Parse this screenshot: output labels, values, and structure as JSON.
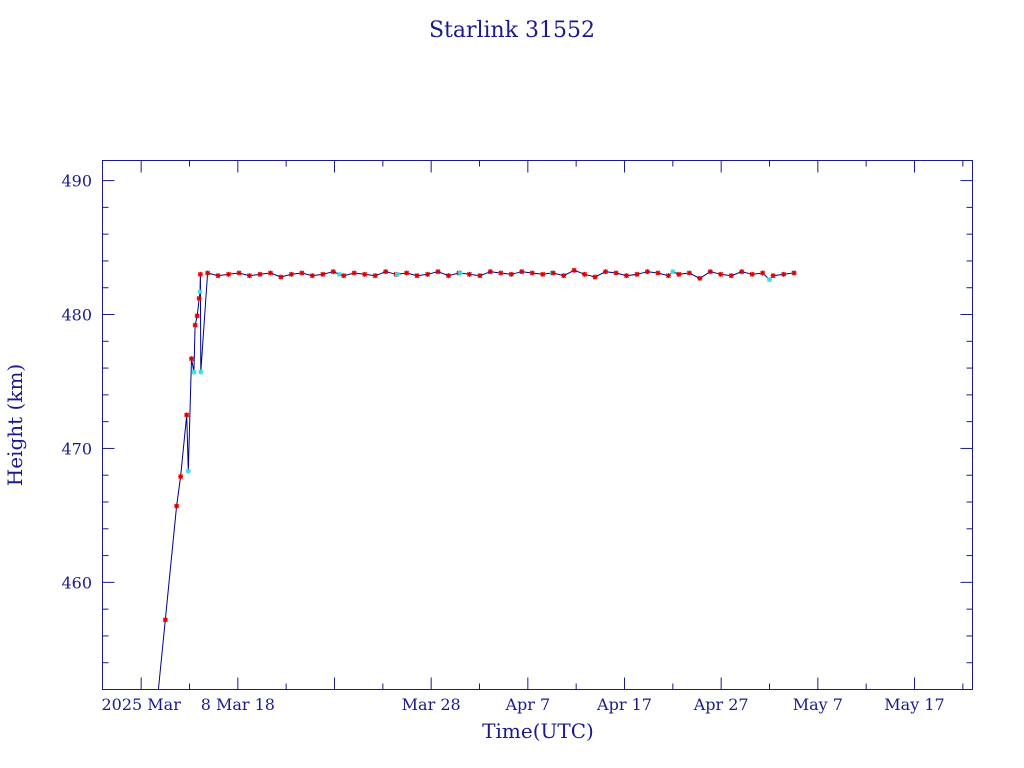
{
  "chart_data": {
    "type": "scatter",
    "title": "Starlink 31552",
    "xlabel": "Time(UTC)",
    "ylabel": "Height (km)",
    "x_unit": "day",
    "xlim": [
      "2025-02-22",
      "2025-05-23"
    ],
    "ylim": [
      452,
      491.5
    ],
    "grid": false,
    "legend": "none",
    "colors": {
      "axis": "#1a1a8c",
      "line": "#00008b",
      "main": "#dd0000",
      "alt": "#33e0e8"
    },
    "x_ticks": [
      {
        "x": "2025-02-26",
        "label": "2025 Mar"
      },
      {
        "x": "2025-03-08",
        "label": "8 Mar 18"
      },
      {
        "x": "2025-03-28",
        "label": "Mar 28"
      },
      {
        "x": "2025-04-07",
        "label": "Apr  7"
      },
      {
        "x": "2025-04-17",
        "label": "Apr 17"
      },
      {
        "x": "2025-04-27",
        "label": "Apr 27"
      },
      {
        "x": "2025-05-07",
        "label": "May  7"
      },
      {
        "x": "2025-05-17",
        "label": "May 17"
      }
    ],
    "y_ticks": [
      460,
      470,
      480,
      490
    ],
    "series": [
      {
        "marker": "main",
        "x": [
          "2025-02-28T12:00",
          "2025-03-01T16:00",
          "2025-03-02T02:00",
          "2025-03-02T17:00",
          "2025-03-03T05:00",
          "2025-03-03T14:00",
          "2025-03-03T19:00",
          "2025-03-04T00:00",
          "2025-03-04T03:00",
          "2025-03-04T21:00",
          "2025-03-05T23:00",
          "2025-03-07T01:00",
          "2025-03-08T03:00",
          "2025-03-09T05:00",
          "2025-03-10T07:00",
          "2025-03-11T09:00",
          "2025-03-12T11:00",
          "2025-03-13T13:00",
          "2025-03-14T15:00",
          "2025-03-15T17:00",
          "2025-03-16T19:00",
          "2025-03-17T21:00",
          "2025-03-18T23:00",
          "2025-03-20T01:00",
          "2025-03-21T03:00",
          "2025-03-22T05:00",
          "2025-03-23T07:00",
          "2025-03-24T09:00",
          "2025-03-25T11:00",
          "2025-03-26T13:00",
          "2025-03-27T15:00",
          "2025-03-28T17:00",
          "2025-03-29T19:00",
          "2025-03-30T21:00",
          "2025-03-31T23:00",
          "2025-04-02T01:00",
          "2025-04-03T03:00",
          "2025-04-04T05:00",
          "2025-04-05T07:00",
          "2025-04-06T09:00",
          "2025-04-07T11:00",
          "2025-04-08T13:00",
          "2025-04-09T15:00",
          "2025-04-10T17:00",
          "2025-04-11T19:00",
          "2025-04-12T21:00",
          "2025-04-13T23:00",
          "2025-04-15T01:00",
          "2025-04-16T03:00",
          "2025-04-17T05:00",
          "2025-04-18T07:00",
          "2025-04-19T09:00",
          "2025-04-20T11:00",
          "2025-04-21T13:00",
          "2025-04-22T15:00",
          "2025-04-23T17:00",
          "2025-04-24T19:00",
          "2025-04-25T21:00",
          "2025-04-26T23:00",
          "2025-04-28T01:00",
          "2025-04-29T03:00",
          "2025-04-30T05:00",
          "2025-05-01T07:00",
          "2025-05-02T09:00",
          "2025-05-03T11:00",
          "2025-05-04T13:00"
        ],
        "y": [
          457.2,
          465.7,
          467.9,
          472.5,
          476.7,
          479.2,
          479.9,
          481.2,
          483.0,
          483.1,
          482.9,
          483.0,
          483.1,
          482.9,
          483.0,
          483.1,
          482.8,
          483.0,
          483.1,
          482.9,
          483.0,
          483.2,
          482.9,
          483.1,
          483.0,
          482.9,
          483.2,
          483.0,
          483.1,
          482.9,
          483.0,
          483.2,
          482.9,
          483.1,
          483.0,
          482.9,
          483.2,
          483.1,
          483.0,
          483.2,
          483.1,
          483.0,
          483.1,
          482.9,
          483.3,
          483.0,
          482.8,
          483.2,
          483.1,
          482.9,
          483.0,
          483.2,
          483.1,
          482.9,
          483.0,
          483.1,
          482.7,
          483.2,
          483.0,
          482.9,
          483.2,
          483.0,
          483.1,
          482.9,
          483.0,
          483.1
        ]
      },
      {
        "marker": "alt",
        "x": [
          "2025-03-02T21:00",
          "2025-03-03T11:00",
          "2025-03-04T02:00",
          "2025-03-04T04:00",
          "2025-03-18T12:00",
          "2025-03-24T12:00",
          "2025-03-31T00:00",
          "2025-04-09T12:00",
          "2025-04-22T00:00",
          "2025-05-02T00:00",
          "2025-05-04T12:00"
        ],
        "y": [
          468.3,
          475.7,
          481.7,
          475.7,
          483.0,
          483.0,
          483.1,
          483.1,
          483.2,
          482.6,
          483.1
        ]
      }
    ]
  }
}
